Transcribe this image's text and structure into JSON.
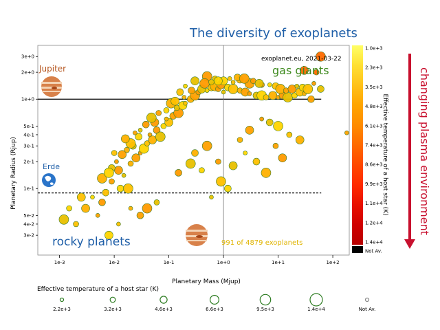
{
  "chart_data": {
    "type": "scatter",
    "title": "The diversity of exoplanets",
    "xlabel": "Planetary Mass (Mjup)",
    "ylabel": "Planetary Radius (Rjup)",
    "x_scale": "log",
    "y_scale": "log",
    "xlim": [
      0.0004,
      200
    ],
    "ylim": [
      0.018,
      4
    ],
    "x_ticks": [
      "1e-3",
      "1e-2",
      "1e-1",
      "1e+0",
      "1e+1",
      "1e+2"
    ],
    "y_ticks": [
      "3e+0",
      "2e+0",
      "1e+0",
      "5e-1",
      "4e-1",
      "3e-1",
      "2e-1",
      "1e-1",
      "5e-2",
      "4e-2",
      "3e-2"
    ],
    "source_label": "exoplanet.eu, 2021-03-22",
    "count_label": "991 of 4879 exoplanets",
    "annotations": {
      "jupiter": "Jupiter",
      "erde": "Erde",
      "gas_giants": "gas giants",
      "rocky_planets": "rocky planets"
    },
    "colorbar": {
      "label": "Effective temperature of a host star (K)",
      "ticks": [
        "1.0e+3",
        "2.3e+3",
        "3.5e+3",
        "4.8e+3",
        "6.1e+3",
        "7.4e+3",
        "8.6e+3",
        "9.9e+3",
        "1.1e+4",
        "1.2e+4",
        "1.4e+4",
        "Not Av."
      ],
      "colors": [
        "#ffff66",
        "#ffe033",
        "#ffc21a",
        "#ffa500",
        "#ff8c00",
        "#ff6a00",
        "#ff4800",
        "#ff2a00",
        "#e81000",
        "#d00000",
        "#b80000",
        "#000000"
      ]
    },
    "size_legend": {
      "title": "Effective temperature of a host star (K)",
      "items": [
        "2.2e+3",
        "3.2e+3",
        "4.6e+3",
        "6.6e+3",
        "9.5e+3",
        "1.4e+4",
        "Not Av."
      ]
    },
    "reference_lines": {
      "jupiter_radius": 1.0,
      "earth_radius": 0.0892,
      "jupiter_mass": 1.0
    },
    "points": [
      [
        0.004,
        0.08
      ],
      [
        0.007,
        0.09
      ],
      [
        0.006,
        0.13
      ],
      [
        0.009,
        0.12
      ],
      [
        0.012,
        0.16
      ],
      [
        0.015,
        0.14
      ],
      [
        0.013,
        0.1
      ],
      [
        0.018,
        0.1
      ],
      [
        0.02,
        0.19
      ],
      [
        0.025,
        0.22
      ],
      [
        0.03,
        0.25
      ],
      [
        0.022,
        0.3
      ],
      [
        0.035,
        0.28
      ],
      [
        0.04,
        0.32
      ],
      [
        0.05,
        0.35
      ],
      [
        0.045,
        0.4
      ],
      [
        0.06,
        0.45
      ],
      [
        0.07,
        0.38
      ],
      [
        0.08,
        0.5
      ],
      [
        0.1,
        0.55
      ],
      [
        0.09,
        0.6
      ],
      [
        0.12,
        0.65
      ],
      [
        0.15,
        0.7
      ],
      [
        0.14,
        0.8
      ],
      [
        0.18,
        0.85
      ],
      [
        0.2,
        0.9
      ],
      [
        0.25,
        1.0
      ],
      [
        0.3,
        1.1
      ],
      [
        0.35,
        1.2
      ],
      [
        0.4,
        1.3
      ],
      [
        0.5,
        1.25
      ],
      [
        0.6,
        1.35
      ],
      [
        0.7,
        1.4
      ],
      [
        0.8,
        1.3
      ],
      [
        0.9,
        1.45
      ],
      [
        1.0,
        1.2
      ],
      [
        1.2,
        1.35
      ],
      [
        1.5,
        1.3
      ],
      [
        2.0,
        1.25
      ],
      [
        2.5,
        1.2
      ],
      [
        3.0,
        1.15
      ],
      [
        4.0,
        1.1
      ],
      [
        5.0,
        1.1
      ],
      [
        6.0,
        1.05
      ],
      [
        8.0,
        1.1
      ],
      [
        10,
        1.05
      ],
      [
        12,
        1.1
      ],
      [
        15,
        1.05
      ],
      [
        20,
        1.1
      ],
      [
        25,
        1.2
      ],
      [
        30,
        1.15
      ],
      [
        40,
        1.0
      ],
      [
        0.5,
        1.8
      ],
      [
        0.7,
        1.7
      ],
      [
        1.0,
        1.6
      ],
      [
        1.5,
        1.55
      ],
      [
        2.0,
        1.65
      ],
      [
        3.0,
        1.5
      ],
      [
        5.0,
        1.45
      ],
      [
        0.3,
        1.6
      ],
      [
        0.2,
        1.4
      ],
      [
        0.16,
        1.2
      ],
      [
        0.11,
        0.9
      ],
      [
        0.065,
        0.7
      ],
      [
        0.055,
        0.55
      ],
      [
        0.03,
        0.45
      ],
      [
        0.028,
        0.38
      ],
      [
        0.02,
        0.32
      ],
      [
        0.017,
        0.27
      ],
      [
        0.014,
        0.24
      ],
      [
        0.011,
        0.2
      ],
      [
        0.009,
        0.17
      ],
      [
        0.008,
        0.15
      ],
      [
        0.01,
        0.25
      ],
      [
        0.016,
        0.36
      ],
      [
        0.024,
        0.42
      ],
      [
        0.038,
        0.52
      ],
      [
        0.048,
        0.62
      ],
      [
        0.09,
        0.75
      ],
      [
        0.13,
        0.95
      ],
      [
        0.19,
        1.05
      ],
      [
        0.26,
        1.25
      ],
      [
        0.45,
        1.5
      ],
      [
        0.6,
        1.55
      ],
      [
        0.8,
        1.6
      ],
      [
        1.3,
        1.7
      ],
      [
        1.8,
        1.75
      ],
      [
        2.4,
        1.7
      ],
      [
        3.5,
        1.6
      ],
      [
        4.5,
        1.5
      ],
      [
        7.0,
        1.45
      ],
      [
        9.0,
        1.4
      ],
      [
        11,
        1.3
      ],
      [
        14,
        1.25
      ],
      [
        18,
        1.3
      ],
      [
        22,
        1.4
      ],
      [
        28,
        1.35
      ],
      [
        35,
        1.3
      ],
      [
        50,
        2.0
      ],
      [
        30,
        2.1
      ],
      [
        45,
        1.5
      ],
      [
        60,
        1.3
      ],
      [
        60,
        3.0
      ],
      [
        0.002,
        0.04
      ],
      [
        0.003,
        0.06
      ],
      [
        0.005,
        0.05
      ],
      [
        0.006,
        0.07
      ],
      [
        0.0012,
        0.045
      ],
      [
        0.0015,
        0.06
      ],
      [
        0.0025,
        0.08
      ],
      [
        0.02,
        0.06
      ],
      [
        0.03,
        0.05
      ],
      [
        0.04,
        0.06
      ],
      [
        0.06,
        0.07
      ],
      [
        0.008,
        0.03
      ],
      [
        0.012,
        0.04
      ],
      [
        0.3,
        0.25
      ],
      [
        0.5,
        0.3
      ],
      [
        0.8,
        0.2
      ],
      [
        1.5,
        0.18
      ],
      [
        2.5,
        0.25
      ],
      [
        4.0,
        0.2
      ],
      [
        6.0,
        0.15
      ],
      [
        9.0,
        0.3
      ],
      [
        12,
        0.22
      ],
      [
        0.6,
        0.08
      ],
      [
        1.2,
        0.1
      ],
      [
        0.9,
        0.12
      ],
      [
        2.0,
        0.35
      ],
      [
        3.0,
        0.45
      ],
      [
        5.0,
        0.6
      ],
      [
        7.0,
        0.55
      ],
      [
        10,
        0.5
      ],
      [
        16,
        0.4
      ],
      [
        25,
        0.35
      ],
      [
        180,
        0.42
      ],
      [
        0.15,
        0.15
      ],
      [
        0.25,
        0.19
      ],
      [
        0.4,
        0.16
      ]
    ]
  }
}
